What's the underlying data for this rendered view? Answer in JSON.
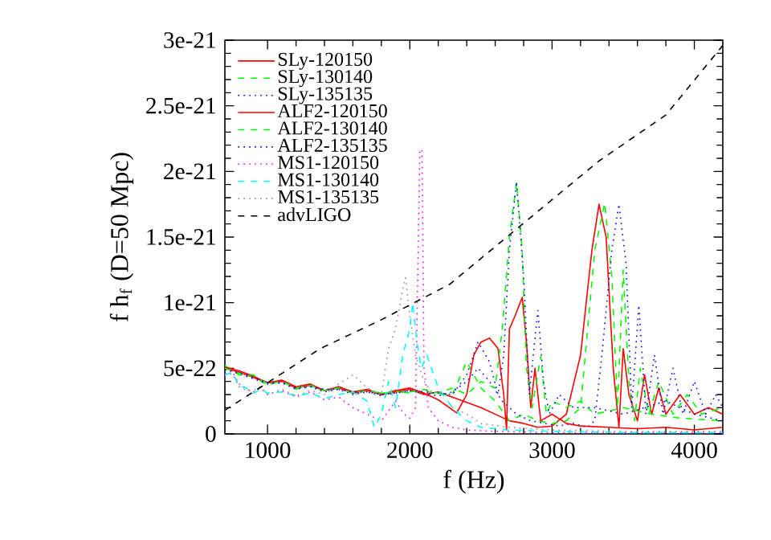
{
  "chart_data": {
    "type": "line",
    "xlabel": "f (Hz)",
    "ylabel": "f h$_{f}$ (D=50 Mpc)",
    "xlim": [
      700,
      4200
    ],
    "ylim": [
      0,
      3e-21
    ],
    "xticks": [
      1000,
      2000,
      3000,
      4000
    ],
    "yticks": [
      0,
      {
        "value": 5e-22,
        "label": "5e-22"
      },
      {
        "value": 1e-21,
        "label": "1e-21"
      },
      {
        "value": 1.5e-21,
        "label": "1.5e-21"
      },
      {
        "value": 2e-21,
        "label": "2e-21"
      },
      {
        "value": 2.5e-21,
        "label": "2.5e-21"
      },
      {
        "value": 3e-21,
        "label": "3e-21"
      }
    ],
    "legend": "top left",
    "grid": false,
    "series": [
      {
        "name": "SLy-120150",
        "color": "#ff0000",
        "line_style": "solid",
        "x": [
          700,
          800,
          900,
          1000,
          1100,
          1200,
          1300,
          1400,
          1500,
          1600,
          1700,
          1800,
          1900,
          2000,
          2100,
          2200,
          2300,
          2400,
          2500,
          2600,
          2700,
          2800,
          2900,
          3000,
          3100,
          3200,
          3280,
          3330,
          3380,
          3430,
          3470,
          3500,
          3540,
          3600,
          3650,
          3700,
          3750,
          3800,
          3900,
          4000,
          4100,
          4200
        ],
        "values": [
          5e-22,
          4.7e-22,
          4.3e-22,
          3.9e-22,
          4e-22,
          3.5e-22,
          3.7e-22,
          3.3e-22,
          3.5e-22,
          3.1e-22,
          3.3e-22,
          3e-22,
          3.2e-22,
          3.4e-22,
          3e-22,
          3.2e-22,
          2.8e-22,
          2.4e-22,
          2e-22,
          1.5e-22,
          1e-22,
          8e-23,
          5e-23,
          6e-23,
          1.5e-22,
          6e-22,
          1.4e-21,
          1.75e-21,
          1.5e-21,
          5e-22,
          5e-23,
          6.5e-22,
          3e-22,
          1e-22,
          4.5e-22,
          1.5e-22,
          3.5e-22,
          1.5e-22,
          3e-22,
          1.5e-22,
          2e-22,
          1.5e-22
        ]
      },
      {
        "name": "SLy-130140",
        "color": "#00ff00",
        "line_style": "dashed",
        "x": [
          700,
          800,
          900,
          1000,
          1100,
          1200,
          1300,
          1400,
          1500,
          1600,
          1700,
          1800,
          1900,
          2000,
          2100,
          2200,
          2300,
          2400,
          2500,
          2600,
          2700,
          2800,
          2900,
          3000,
          3100,
          3200,
          3250,
          3300,
          3370,
          3420,
          3460,
          3500,
          3540,
          3580,
          3620,
          3680,
          3750,
          3850,
          3950,
          4050,
          4200
        ],
        "values": [
          5.2e-22,
          4.5e-22,
          4.4e-22,
          3.7e-22,
          4.1e-22,
          3.4e-22,
          3.8e-22,
          3.2e-22,
          3.6e-22,
          3.2e-22,
          3.4e-22,
          3.1e-22,
          3.3e-22,
          3.1e-22,
          3.3e-22,
          3e-22,
          3e-22,
          5.5e-22,
          3.5e-22,
          2.5e-22,
          1e-22,
          1.5e-22,
          1e-22,
          8e-23,
          1e-22,
          2e-22,
          8e-22,
          1.4e-21,
          1.76e-21,
          1.2e-21,
          2e-22,
          1.25e-21,
          4e-22,
          1e-22,
          5e-22,
          1.5e-22,
          4e-22,
          1.5e-22,
          3e-22,
          1.5e-22,
          2e-22
        ]
      },
      {
        "name": "SLy-135135",
        "color": "#0000ff",
        "line_style": "dotted",
        "x": [
          700,
          800,
          900,
          1000,
          1100,
          1200,
          1300,
          1400,
          1500,
          1600,
          1700,
          1800,
          1900,
          2000,
          2100,
          2200,
          2300,
          2400,
          2480,
          2560,
          2650,
          2750,
          2850,
          2950,
          3050,
          3150,
          3250,
          3300,
          3350,
          3420,
          3470,
          3520,
          3560,
          3610,
          3660,
          3720,
          3780,
          3850,
          3920,
          4000,
          4080,
          4150,
          4200
        ],
        "values": [
          4.9e-22,
          4.6e-22,
          4.2e-22,
          3.8e-22,
          3.9e-22,
          3.4e-22,
          3.6e-22,
          3.2e-22,
          3.4e-22,
          3e-22,
          3.2e-22,
          2.9e-22,
          3.1e-22,
          3.3e-22,
          3.1e-22,
          2.9e-22,
          3.2e-22,
          4e-22,
          5e-22,
          4e-22,
          2.5e-22,
          1.5e-22,
          1e-22,
          8e-23,
          6e-23,
          8e-23,
          5e-23,
          1e-22,
          6e-22,
          1.4e-21,
          1.75e-21,
          1.3e-21,
          2e-22,
          9.8e-22,
          1.5e-22,
          6e-22,
          1.5e-22,
          5e-22,
          1.5e-22,
          4e-22,
          1.5e-22,
          3e-22,
          2e-22
        ]
      },
      {
        "name": "ALF2-120150",
        "color": "#ff0000",
        "line_style": "solid",
        "x": [
          700,
          800,
          900,
          1000,
          1100,
          1200,
          1300,
          1400,
          1500,
          1600,
          1700,
          1800,
          1900,
          2000,
          2100,
          2200,
          2330,
          2400,
          2450,
          2500,
          2560,
          2620,
          2660,
          2680,
          2700,
          2740,
          2790,
          2820,
          2850,
          2880,
          2920,
          3000,
          3100,
          3200,
          3400,
          3600,
          3800,
          4000,
          4200
        ],
        "values": [
          5.1e-22,
          4.8e-22,
          4.4e-22,
          3.9e-22,
          4.1e-22,
          3.6e-22,
          3.8e-22,
          3.3e-22,
          3.6e-22,
          3.2e-22,
          3.4e-22,
          3e-22,
          3.3e-22,
          3.5e-22,
          3.1e-22,
          2.6e-22,
          1.6e-22,
          3e-22,
          6e-22,
          7e-22,
          7.3e-22,
          6.5e-22,
          3e-22,
          3e-23,
          8e-22,
          9e-22,
          1.04e-21,
          7e-22,
          2e-22,
          5e-22,
          1e-22,
          1.5e-22,
          8e-23,
          6e-23,
          5e-23,
          4e-23,
          5e-23,
          3e-23,
          5e-23
        ]
      },
      {
        "name": "ALF2-130140",
        "color": "#00ff00",
        "line_style": "dashed",
        "x": [
          700,
          800,
          900,
          1000,
          1100,
          1200,
          1300,
          1400,
          1500,
          1600,
          1700,
          1800,
          1900,
          2000,
          2100,
          2200,
          2300,
          2400,
          2500,
          2600,
          2650,
          2700,
          2750,
          2790,
          2820,
          2860,
          2920,
          2960,
          3000,
          3100,
          3200,
          3300,
          3500,
          3700,
          3900,
          4200
        ],
        "values": [
          5e-22,
          4.6e-22,
          4.5e-22,
          3.8e-22,
          4e-22,
          3.5e-22,
          3.7e-22,
          3.3e-22,
          3.5e-22,
          3.1e-22,
          3.3e-22,
          3.1e-22,
          3.2e-22,
          3.2e-22,
          3.4e-22,
          3.1e-22,
          3.5e-22,
          3e-22,
          4e-22,
          3.5e-22,
          8e-22,
          1.5e-21,
          1.92e-21,
          1.4e-21,
          5e-22,
          2e-22,
          5.9e-22,
          1.5e-22,
          2.5e-22,
          2e-22,
          2.5e-22,
          1.5e-22,
          2e-22,
          1.5e-22,
          1.2e-22,
          1e-22
        ]
      },
      {
        "name": "ALF2-135135",
        "color": "#0000ff",
        "line_style": "dotted",
        "x": [
          700,
          800,
          900,
          1000,
          1100,
          1200,
          1300,
          1400,
          1500,
          1600,
          1700,
          1800,
          1900,
          2000,
          2100,
          2200,
          2300,
          2400,
          2480,
          2560,
          2620,
          2660,
          2700,
          2750,
          2800,
          2840,
          2900,
          2940,
          2980,
          3050,
          3150,
          3300,
          3500,
          3800,
          4000,
          4200
        ],
        "values": [
          4.9e-22,
          4.7e-22,
          4.3e-22,
          3.9e-22,
          3.9e-22,
          3.5e-22,
          3.6e-22,
          3.4e-22,
          3.4e-22,
          3.2e-22,
          3.2e-22,
          3e-22,
          3.1e-22,
          3.3e-22,
          3.2e-22,
          3.1e-22,
          3e-22,
          4.5e-22,
          7e-22,
          5.5e-22,
          3e-22,
          6e-22,
          1.4e-21,
          1.92e-21,
          1.2e-21,
          3e-22,
          9.4e-22,
          4e-22,
          1.5e-22,
          3e-22,
          2e-22,
          2e-22,
          1.5e-22,
          2.5e-22,
          1.5e-22,
          1e-22
        ]
      },
      {
        "name": "MS1-120150",
        "color": "#ff00ff",
        "line_style": "dotted",
        "x": [
          700,
          750,
          800,
          850,
          900,
          950,
          1000,
          1100,
          1200,
          1300,
          1400,
          1500,
          1600,
          1700,
          1800,
          1900,
          1960,
          2000,
          2040,
          2070,
          2085,
          2100,
          2130,
          2200,
          2300,
          2400,
          2600,
          3000,
          3500,
          4200
        ],
        "values": [
          4.6e-22,
          4.8e-22,
          3.8e-22,
          3.4e-22,
          3.2e-22,
          3.5e-22,
          3e-22,
          3.3e-22,
          2.8e-22,
          3.2e-22,
          2.6e-22,
          2.8e-22,
          2e-22,
          1.5e-22,
          1e-22,
          2.5e-22,
          1.5e-22,
          1.2e-22,
          2e-22,
          2.15e-21,
          2.17e-21,
          5e-22,
          2e-22,
          1e-22,
          5e-23,
          3e-23,
          2e-23,
          1e-23,
          1e-23,
          1e-23
        ]
      },
      {
        "name": "MS1-130140",
        "color": "#00ffff",
        "line_style": "dashed",
        "x": [
          700,
          750,
          800,
          850,
          900,
          950,
          1000,
          1100,
          1200,
          1300,
          1400,
          1500,
          1600,
          1700,
          1750,
          1800,
          1850,
          1900,
          1950,
          2000,
          2020,
          2050,
          2080,
          2120,
          2200,
          2300,
          2400,
          2500,
          2700,
          3000,
          3500,
          4200
        ],
        "values": [
          4.5e-22,
          4.7e-22,
          3.7e-22,
          3.5e-22,
          3.1e-22,
          3.4e-22,
          3.1e-22,
          3.2e-22,
          2.9e-22,
          3.1e-22,
          2.7e-22,
          3e-22,
          3.2e-22,
          2.5e-22,
          5e-23,
          1.5e-22,
          4e-22,
          2e-22,
          6e-22,
          8e-22,
          1e-21,
          7e-22,
          5e-22,
          6e-22,
          3.5e-22,
          2e-22,
          1e-22,
          5e-23,
          3e-23,
          2e-23,
          1e-23,
          1e-23
        ]
      },
      {
        "name": "MS1-135135",
        "color": "#909090",
        "line_style": "dotted",
        "x": [
          700,
          750,
          800,
          850,
          900,
          950,
          1000,
          1100,
          1200,
          1300,
          1400,
          1500,
          1600,
          1700,
          1800,
          1850,
          1900,
          1950,
          1970,
          2000,
          2040,
          2100,
          2200,
          2300,
          2400,
          2500,
          2700,
          3000,
          3500,
          4200
        ],
        "values": [
          4.4e-22,
          4.6e-22,
          3.6e-22,
          3.3e-22,
          3.3e-22,
          3.6e-22,
          3e-22,
          3.4e-22,
          2.9e-22,
          3.3e-22,
          3e-22,
          3.8e-22,
          4.5e-22,
          3.5e-22,
          3e-22,
          6.5e-22,
          8e-22,
          1.1e-21,
          1.19e-21,
          9e-22,
          6e-22,
          4e-22,
          2.5e-22,
          2e-22,
          1.5e-22,
          8e-23,
          5e-23,
          3e-23,
          2e-23,
          2e-23
        ]
      },
      {
        "name": "advLIGO",
        "color": "#000000",
        "line_style": "dashed",
        "x": [
          700,
          1000,
          1370,
          1800,
          2280,
          2760,
          3330,
          3800,
          4200
        ],
        "values": [
          1.8e-22,
          3.9e-22,
          6.5e-22,
          8.7e-22,
          1.14e-21,
          1.57e-21,
          2.08e-21,
          2.43e-21,
          2.96e-21
        ]
      }
    ]
  }
}
